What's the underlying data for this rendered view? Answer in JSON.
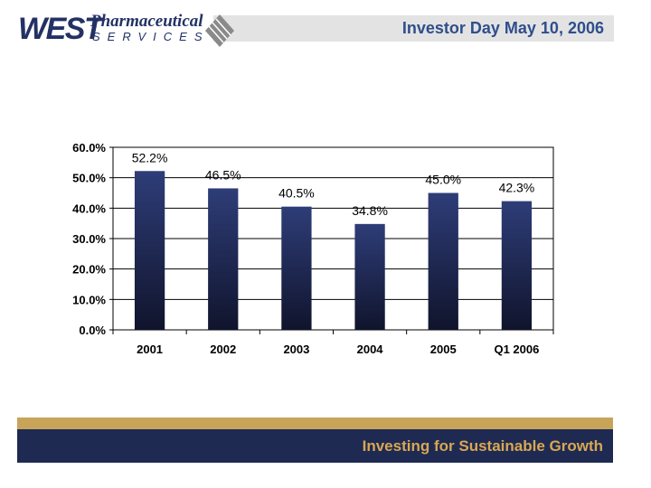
{
  "header": {
    "title": "Investor Day May 10, 2006"
  },
  "logo": {
    "brand": "WEST",
    "name": "Pharmaceutical",
    "sub": "SERVICES"
  },
  "footer": {
    "tagline": "Investing for Sustainable Growth"
  },
  "colors": {
    "brand_navy": "#1e2a52",
    "accent_tan": "#c8a45a",
    "title_blue": "#2f4e8c",
    "tagline_gold": "#d9a752",
    "bar_top": "#2e3d78",
    "bar_bottom": "#10142c"
  },
  "chart_data": {
    "type": "bar",
    "title": "",
    "xlabel": "",
    "ylabel": "",
    "categories": [
      "2001",
      "2002",
      "2003",
      "2004",
      "2005",
      "Q1 2006"
    ],
    "values": [
      52.2,
      46.5,
      40.5,
      34.8,
      45.0,
      42.3
    ],
    "value_labels": [
      "52.2%",
      "46.5%",
      "40.5%",
      "34.8%",
      "45.0%",
      "42.3%"
    ],
    "ylim": [
      0,
      60
    ],
    "y_ticks": [
      0,
      10,
      20,
      30,
      40,
      50,
      60
    ],
    "y_tick_labels": [
      "0.0%",
      "10.0%",
      "20.0%",
      "30.0%",
      "40.0%",
      "50.0%",
      "60.0%"
    ],
    "grid": true,
    "legend": "none"
  }
}
